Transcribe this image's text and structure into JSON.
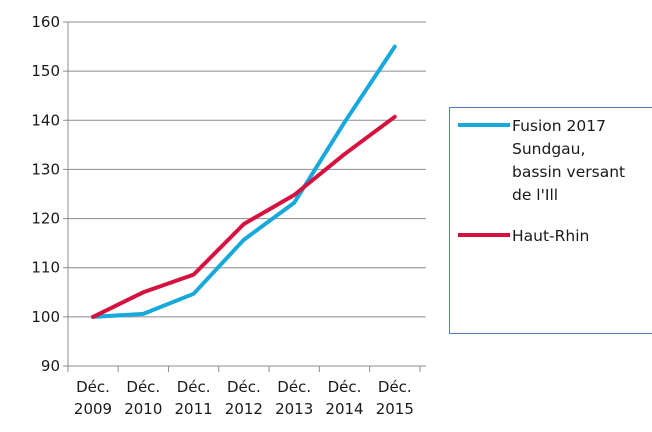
{
  "chart_data": {
    "type": "line",
    "title": "",
    "xlabel": "",
    "ylabel": "",
    "ylim": [
      90,
      160
    ],
    "yticks": [
      90,
      100,
      110,
      120,
      130,
      140,
      150,
      160
    ],
    "grid": "horizontal",
    "legend_placement": "right",
    "categories": [
      [
        "Déc.",
        "2009"
      ],
      [
        "Déc.",
        "2010"
      ],
      [
        "Déc.",
        "2011"
      ],
      [
        "Déc.",
        "2012"
      ],
      [
        "Déc.",
        "2013"
      ],
      [
        "Déc.",
        "2014"
      ],
      [
        "Déc.",
        "2015"
      ]
    ],
    "series": [
      {
        "name": "Fusion 2017 Sundgau, bassin versant de l'Ill",
        "legend_lines": [
          "Fusion 2017",
          "Sundgau,",
          "bassin versant",
          "de l'Ill"
        ],
        "color": "#17a9dc",
        "values": [
          100,
          100.6,
          104.7,
          115.7,
          123.2,
          139.6,
          155
        ]
      },
      {
        "name": "Haut-Rhin",
        "legend_lines": [
          "Haut-Rhin"
        ],
        "color": "#d5123f",
        "values": [
          100,
          105,
          108.6,
          118.9,
          124.8,
          133.1,
          140.7
        ]
      }
    ]
  }
}
